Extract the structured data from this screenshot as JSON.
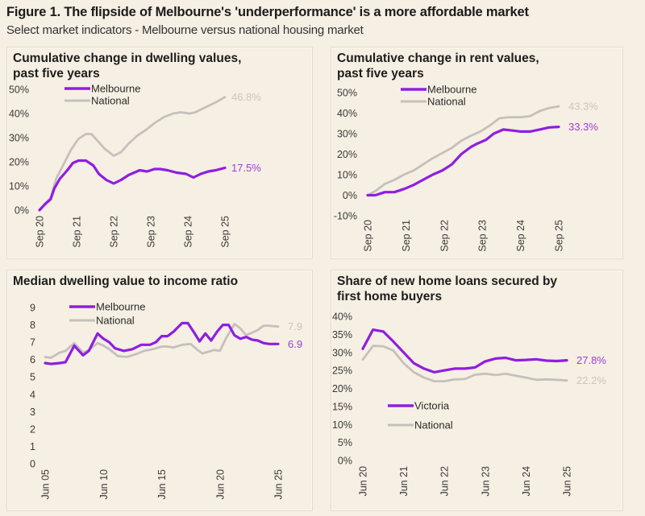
{
  "figure": {
    "title": "Figure 1. The flipside of Melbourne's 'underperformance' is a more affordable market",
    "subtitle": "Select market indicators - Melbourne versus national housing market"
  },
  "colors": {
    "melbourne": "#8f1ee0",
    "national": "#c4c1bc",
    "background": "#f5efe4"
  },
  "chart_data": [
    {
      "id": "dwelling",
      "type": "line",
      "title": "Cumulative change in dwelling values, past five years",
      "title_lines": [
        "Cumulative change in dwelling values,",
        "past five years"
      ],
      "xlabel": "",
      "ylabel": "",
      "x_range": [
        2020.75,
        2025.75
      ],
      "ylim": [
        0,
        50
      ],
      "y_ticks": [
        0,
        10,
        20,
        30,
        40,
        50
      ],
      "y_tick_labels": [
        "0%",
        "10%",
        "20%",
        "30%",
        "40%",
        "50%"
      ],
      "x_ticks": [
        2020.75,
        2021.75,
        2022.75,
        2023.75,
        2024.75,
        2025.75
      ],
      "x_tick_labels": [
        "Sep 20",
        "Sep 21",
        "Sep 22",
        "Sep 23",
        "Sep 24",
        "Sep 25"
      ],
      "legend": [
        "Melbourne",
        "National"
      ],
      "legend_position": "top-left",
      "grid": false,
      "series": [
        {
          "name": "Melbourne",
          "color_key": "melbourne",
          "end_label": "17.5%",
          "x": [
            2020.75,
            2020.9,
            2021.05,
            2021.15,
            2021.3,
            2021.5,
            2021.65,
            2021.8,
            2022.0,
            2022.2,
            2022.35,
            2022.55,
            2022.75,
            2022.95,
            2023.15,
            2023.45,
            2023.65,
            2023.85,
            2024.0,
            2024.2,
            2024.45,
            2024.7,
            2024.9,
            2025.1,
            2025.3,
            2025.5,
            2025.75
          ],
          "values": [
            0,
            2.5,
            4.5,
            9,
            13,
            16.5,
            19.5,
            20.5,
            20.5,
            18.5,
            15,
            12.5,
            11,
            12.5,
            14.5,
            16.5,
            16,
            17,
            17,
            16.5,
            15.5,
            15,
            13.5,
            15,
            16,
            16.5,
            17.5
          ]
        },
        {
          "name": "National",
          "color_key": "national",
          "end_label": "46.8%",
          "x": [
            2020.75,
            2020.9,
            2021.05,
            2021.2,
            2021.4,
            2021.6,
            2021.8,
            2022.0,
            2022.15,
            2022.3,
            2022.5,
            2022.75,
            2022.95,
            2023.15,
            2023.4,
            2023.6,
            2023.85,
            2024.1,
            2024.35,
            2024.55,
            2024.8,
            2024.95,
            2025.15,
            2025.35,
            2025.55,
            2025.75
          ],
          "values": [
            0,
            2.5,
            5,
            13,
            19,
            25,
            29.5,
            31.5,
            31.5,
            29,
            25.5,
            22.5,
            24,
            27.5,
            31,
            33,
            36,
            38.5,
            40,
            40.5,
            40,
            40.5,
            42,
            43.5,
            45,
            46.8
          ]
        }
      ]
    },
    {
      "id": "rent",
      "type": "line",
      "title": "Cumulative change in rent values, past five years",
      "title_lines": [
        "Cumulative change in rent values,",
        "past five years"
      ],
      "xlabel": "",
      "ylabel": "",
      "x_range": [
        2020.75,
        2025.75
      ],
      "ylim": [
        -10,
        50
      ],
      "y_ticks": [
        -10,
        0,
        10,
        20,
        30,
        40,
        50
      ],
      "y_tick_labels": [
        "-10%",
        "0%",
        "10%",
        "20%",
        "30%",
        "40%",
        "50%"
      ],
      "x_ticks": [
        2020.75,
        2021.75,
        2022.75,
        2023.75,
        2024.75,
        2025.75
      ],
      "x_tick_labels": [
        "Sep 20",
        "Sep 21",
        "Sep 22",
        "Sep 23",
        "Sep 24",
        "Sep 25"
      ],
      "legend": [
        "Melbourne",
        "National"
      ],
      "legend_position": "top-left",
      "grid": false,
      "series": [
        {
          "name": "Melbourne",
          "color_key": "melbourne",
          "end_label": "33.3%",
          "x": [
            2020.75,
            2020.95,
            2021.2,
            2021.45,
            2021.7,
            2021.95,
            2022.2,
            2022.45,
            2022.7,
            2022.95,
            2023.2,
            2023.45,
            2023.6,
            2023.85,
            2024.05,
            2024.3,
            2024.55,
            2024.75,
            2025.0,
            2025.25,
            2025.5,
            2025.75
          ],
          "values": [
            0,
            0,
            1.5,
            1.5,
            3,
            5,
            7.5,
            10,
            12,
            15,
            20,
            23.5,
            25,
            27,
            30,
            32,
            31.5,
            31,
            31,
            32,
            33,
            33.3
          ]
        },
        {
          "name": "National",
          "color_key": "national",
          "end_label": "43.3%",
          "x": [
            2020.75,
            2020.95,
            2021.2,
            2021.45,
            2021.7,
            2021.95,
            2022.2,
            2022.45,
            2022.7,
            2022.95,
            2023.2,
            2023.45,
            2023.7,
            2023.95,
            2024.2,
            2024.45,
            2024.75,
            2025.0,
            2025.25,
            2025.5,
            2025.75
          ],
          "values": [
            0,
            2,
            5.5,
            7.5,
            10,
            12,
            15,
            18,
            20.5,
            23,
            26.5,
            29,
            31,
            34,
            37.5,
            38,
            38,
            38.5,
            41,
            42.5,
            43.3
          ]
        }
      ]
    },
    {
      "id": "ratio",
      "type": "line",
      "title": "Median dwelling value to income ratio",
      "title_lines": [
        "Median dwelling value to income ratio"
      ],
      "xlabel": "",
      "ylabel": "",
      "x_range": [
        2005.5,
        2025.5
      ],
      "ylim": [
        0,
        9
      ],
      "y_ticks": [
        0,
        1,
        2,
        3,
        4,
        5,
        6,
        7,
        8,
        9
      ],
      "y_tick_labels": [
        "0",
        "1",
        "2",
        "3",
        "4",
        "5",
        "6",
        "7",
        "8",
        "9"
      ],
      "x_ticks": [
        2005.5,
        2010.5,
        2015.5,
        2020.5,
        2025.5
      ],
      "x_tick_labels": [
        "Jun 05",
        "Jun 10",
        "Jun 15",
        "Jun 20",
        "Jun 25"
      ],
      "legend": [
        "Melbourne",
        "National"
      ],
      "legend_position": "top-left",
      "grid": false,
      "series": [
        {
          "name": "Melbourne",
          "color_key": "melbourne",
          "end_label": "6.9",
          "x": [
            2005.5,
            2006.0,
            2006.75,
            2007.25,
            2008.0,
            2008.75,
            2009.25,
            2010.0,
            2010.5,
            2011.0,
            2011.5,
            2012.25,
            2013.0,
            2013.75,
            2014.5,
            2015.0,
            2015.5,
            2016.0,
            2016.5,
            2017.25,
            2017.75,
            2018.25,
            2018.75,
            2019.25,
            2019.75,
            2020.25,
            2020.75,
            2021.25,
            2021.75,
            2022.25,
            2022.75,
            2023.25,
            2023.75,
            2024.25,
            2024.75,
            2025.5
          ],
          "values": [
            5.8,
            5.75,
            5.8,
            5.85,
            6.8,
            6.25,
            6.5,
            7.5,
            7.2,
            7.0,
            6.65,
            6.5,
            6.6,
            6.85,
            6.85,
            7.0,
            7.35,
            7.35,
            7.6,
            8.1,
            8.1,
            7.6,
            7.05,
            7.5,
            7.1,
            7.6,
            8.0,
            8.0,
            7.4,
            7.2,
            7.3,
            7.15,
            7.1,
            6.95,
            6.9,
            6.9
          ]
        },
        {
          "name": "National",
          "color_key": "national",
          "end_label": "7.9",
          "x": [
            2005.5,
            2006.0,
            2006.75,
            2007.25,
            2008.0,
            2008.75,
            2009.25,
            2010.0,
            2010.5,
            2011.0,
            2011.75,
            2012.5,
            2013.25,
            2014.0,
            2014.75,
            2015.5,
            2016.0,
            2016.5,
            2017.25,
            2018.0,
            2018.5,
            2019.0,
            2019.5,
            2020.0,
            2020.5,
            2021.0,
            2021.75,
            2022.25,
            2022.75,
            2023.25,
            2023.75,
            2024.25,
            2024.75,
            2025.5
          ],
          "values": [
            6.15,
            6.1,
            6.4,
            6.5,
            6.95,
            6.4,
            6.55,
            6.95,
            6.8,
            6.6,
            6.2,
            6.15,
            6.3,
            6.5,
            6.6,
            6.75,
            6.75,
            6.7,
            6.85,
            6.9,
            6.6,
            6.35,
            6.45,
            6.55,
            6.5,
            7.2,
            8.05,
            7.8,
            7.4,
            7.55,
            7.7,
            7.95,
            7.95,
            7.9
          ]
        }
      ]
    },
    {
      "id": "fhb",
      "type": "line",
      "title": "Share of new home loans secured by first home buyers",
      "title_lines": [
        "Share of new home loans secured by",
        "first home buyers"
      ],
      "xlabel": "",
      "ylabel": "",
      "x_range": [
        2020.5,
        2025.5
      ],
      "ylim": [
        0,
        40
      ],
      "y_ticks": [
        0,
        5,
        10,
        15,
        20,
        25,
        30,
        35,
        40
      ],
      "y_tick_labels": [
        "0%",
        "5%",
        "10%",
        "15%",
        "20%",
        "25%",
        "30%",
        "35%",
        "40%"
      ],
      "x_ticks": [
        2020.5,
        2021.5,
        2022.5,
        2023.5,
        2024.5,
        2025.5
      ],
      "x_tick_labels": [
        "Jun 20",
        "Jun 21",
        "Jun 22",
        "Jun 23",
        "Jun 24",
        "Jun 25"
      ],
      "legend": [
        "Victoria",
        "National"
      ],
      "legend_position": "bottom-left",
      "grid": false,
      "series": [
        {
          "name": "Victoria",
          "color_key": "melbourne",
          "end_label": "27.8%",
          "x": [
            2020.5,
            2020.75,
            2021.0,
            2021.25,
            2021.5,
            2021.75,
            2022.0,
            2022.25,
            2022.5,
            2022.75,
            2023.0,
            2023.25,
            2023.5,
            2023.75,
            2024.0,
            2024.25,
            2024.5,
            2024.75,
            2025.0,
            2025.25,
            2025.5
          ],
          "values": [
            31,
            36.3,
            35.8,
            33,
            30,
            27,
            25.5,
            24.5,
            25,
            25.5,
            25.5,
            25.8,
            27.5,
            28.3,
            28.5,
            27.8,
            27.9,
            28.1,
            27.7,
            27.6,
            27.8
          ]
        },
        {
          "name": "National",
          "color_key": "national",
          "end_label": "22.2%",
          "x": [
            2020.5,
            2020.75,
            2021.0,
            2021.25,
            2021.5,
            2021.75,
            2022.0,
            2022.25,
            2022.5,
            2022.75,
            2023.0,
            2023.25,
            2023.5,
            2023.75,
            2024.0,
            2024.25,
            2024.5,
            2024.75,
            2025.0,
            2025.25,
            2025.5
          ],
          "values": [
            28,
            31.8,
            31.7,
            30.5,
            27,
            24.5,
            23,
            22,
            22,
            22.5,
            22.6,
            23.8,
            24.1,
            23.7,
            24.1,
            23.5,
            23,
            22.4,
            22.5,
            22.4,
            22.2
          ]
        }
      ]
    }
  ]
}
